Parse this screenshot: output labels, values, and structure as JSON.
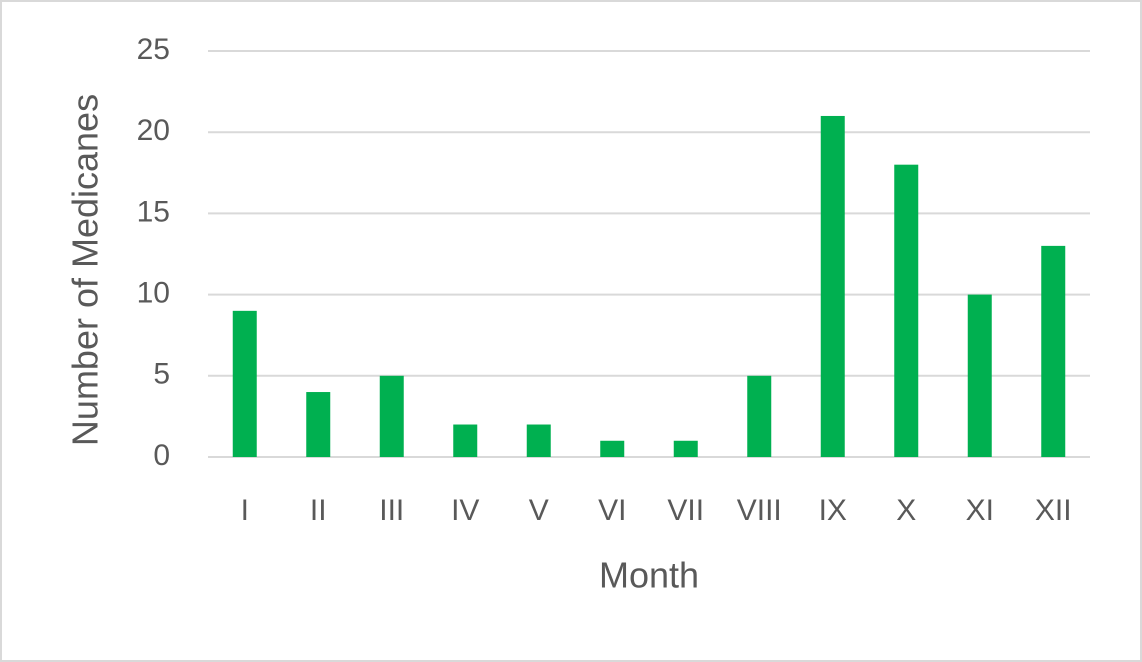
{
  "chart_data": {
    "type": "bar",
    "x_label": "Month",
    "y_label": "Number of Medicanes",
    "categories": [
      "I",
      "II",
      "III",
      "IV",
      "V",
      "VI",
      "VII",
      "VIII",
      "IX",
      "X",
      "XI",
      "XII"
    ],
    "values": [
      9,
      4,
      5,
      2,
      2,
      1,
      1,
      5,
      21,
      18,
      10,
      13
    ],
    "color": "#00b050",
    "ylim": [
      0,
      25
    ],
    "yticks": [
      0,
      5,
      10,
      15,
      20,
      25
    ],
    "grid": true
  }
}
